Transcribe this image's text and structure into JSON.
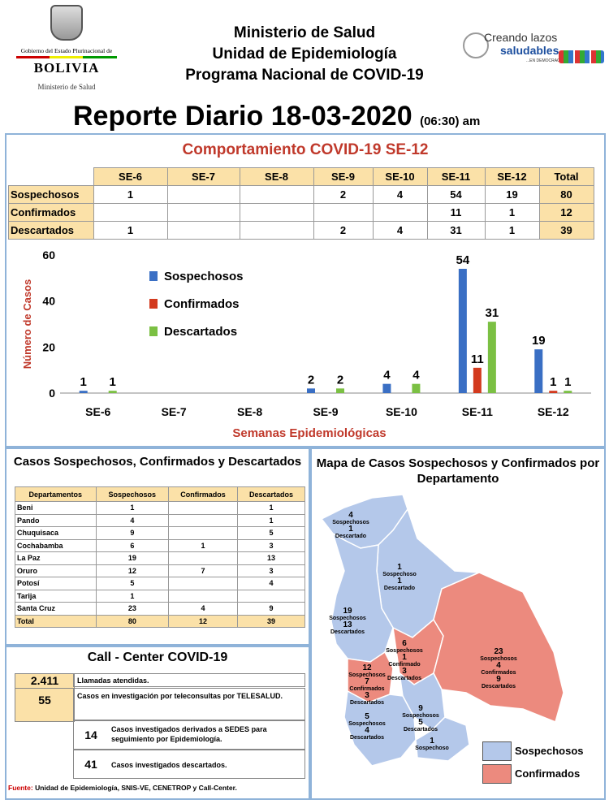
{
  "header": {
    "gob_line": "Gobierno del Estado Plurinacional de",
    "country": "BOLIVIA",
    "ministry_logo": "Ministerio de Salud",
    "title1": "Ministerio de Salud",
    "title2": "Unidad de Epidemiología",
    "title3": "Programa Nacional de COVID-19",
    "campaign_line1": "Creando lazos",
    "campaign_line2": "saludables",
    "campaign_line3": "...EN DEMOCRACIA",
    "report_title": "Reporte Diario 18-03-2020",
    "report_time": "(06:30) am"
  },
  "colors": {
    "sospechosos": "#3a6fc4",
    "confirmados": "#d33a1e",
    "descartados": "#7bc043",
    "table_header": "#fbe1a8",
    "panel_border": "#8fb3d9",
    "map_blue": "#b4c8ea",
    "map_red": "#ec8a7e"
  },
  "weekly": {
    "title": "Comportamiento COVID-19 SE-12",
    "columns": [
      "SE-6",
      "SE-7",
      "SE-8",
      "SE-9",
      "SE-10",
      "SE-11",
      "SE-12",
      "Total"
    ],
    "rows": [
      {
        "label": "Sospechosos",
        "cells": [
          "1",
          "",
          "",
          "2",
          "4",
          "54",
          "19",
          "80"
        ]
      },
      {
        "label": "Confirmados",
        "cells": [
          "",
          "",
          "",
          "",
          "",
          "11",
          "1",
          "12"
        ]
      },
      {
        "label": "Descartados",
        "cells": [
          "1",
          "",
          "",
          "2",
          "4",
          "31",
          "1",
          "39"
        ]
      }
    ]
  },
  "chart_data": {
    "type": "bar",
    "categories": [
      "SE-6",
      "SE-7",
      "SE-8",
      "SE-9",
      "SE-10",
      "SE-11",
      "SE-12"
    ],
    "series": [
      {
        "name": "Sospechosos",
        "values": [
          1,
          0,
          0,
          2,
          4,
          54,
          19
        ]
      },
      {
        "name": "Confirmados",
        "values": [
          0,
          0,
          0,
          0,
          0,
          11,
          1
        ]
      },
      {
        "name": "Descartados",
        "values": [
          1,
          0,
          0,
          2,
          4,
          31,
          1
        ]
      }
    ],
    "data_labels": [
      [
        "1",
        "",
        "",
        "2",
        "4",
        "54",
        "19"
      ],
      [
        "",
        "",
        "",
        "",
        "",
        "11",
        "1"
      ],
      [
        "1",
        "",
        "",
        "2",
        "4",
        "31",
        "1"
      ]
    ],
    "xlabel": "Semanas Epidemiológicas",
    "ylabel": "Número de Casos",
    "ylim": [
      0,
      60
    ],
    "yticks": [
      0,
      20,
      40,
      60
    ],
    "legend_position": "top-left",
    "grid": false
  },
  "departments": {
    "title": "Casos Sospechosos, Confirmados y Descartados",
    "columns": [
      "Departamentos",
      "Sospechosos",
      "Confirmados",
      "Descartados"
    ],
    "rows": [
      [
        "Beni",
        "1",
        "",
        "1"
      ],
      [
        "Pando",
        "4",
        "",
        "1"
      ],
      [
        "Chuquisaca",
        "9",
        "",
        "5"
      ],
      [
        "Cochabamba",
        "6",
        "1",
        "3"
      ],
      [
        "La Paz",
        "19",
        "",
        "13"
      ],
      [
        "Oruro",
        "12",
        "7",
        "3"
      ],
      [
        "Potosí",
        "5",
        "",
        "4"
      ],
      [
        "Tarija",
        "1",
        "",
        ""
      ],
      [
        "Santa Cruz",
        "23",
        "4",
        "9"
      ]
    ],
    "total": [
      "Total",
      "80",
      "12",
      "39"
    ]
  },
  "call_center": {
    "title": "Call  - Center COVID-19",
    "rows": [
      {
        "value": "2.411",
        "text": "Llamadas  atendidas."
      },
      {
        "value": "55",
        "text": "Casos en investigación por teleconsultas por TELESALUD."
      },
      {
        "value": "14",
        "text": "Casos investigados derivados a SEDES para seguimiento por Epidemiología."
      },
      {
        "value": "41",
        "text": "Casos investigados descartados."
      }
    ],
    "source_label": "Fuente:",
    "source_text": " Unidad de Epidemiología, SNIS-VE, CENETROP y Call-Center."
  },
  "map": {
    "title": "Mapa de Casos Sospechosos y Confirmados por Departamento",
    "labels": [
      {
        "dept": "Pando",
        "lines": [
          "4",
          "Sospechosos",
          "1",
          "Descartado"
        ]
      },
      {
        "dept": "Beni",
        "lines": [
          "1",
          "Sospechoso",
          "1",
          "Descartado"
        ]
      },
      {
        "dept": "La Paz",
        "lines": [
          "19",
          "Sospechosos",
          "13",
          "Descartados"
        ]
      },
      {
        "dept": "Cochabamba",
        "lines": [
          "6",
          "Sospechosos",
          "1",
          "Confirmado",
          "3",
          "Descartados"
        ]
      },
      {
        "dept": "Santa Cruz",
        "lines": [
          "23",
          "Sospechosos",
          "4",
          "Confirmados",
          "9",
          "Descartados"
        ]
      },
      {
        "dept": "Oruro",
        "lines": [
          "12",
          "Sospechosos",
          "7",
          "Confirmados",
          "3",
          "Descartados"
        ]
      },
      {
        "dept": "Chuquisaca",
        "lines": [
          "9",
          "Sospechosos",
          "5",
          "Descartados"
        ]
      },
      {
        "dept": "Potosí",
        "lines": [
          "5",
          "Sospechosos",
          "4",
          "Descartados"
        ]
      },
      {
        "dept": "Tarija",
        "lines": [
          "1",
          "Sospechoso"
        ]
      }
    ],
    "legend": [
      "Sospechosos",
      "Confirmados"
    ]
  }
}
